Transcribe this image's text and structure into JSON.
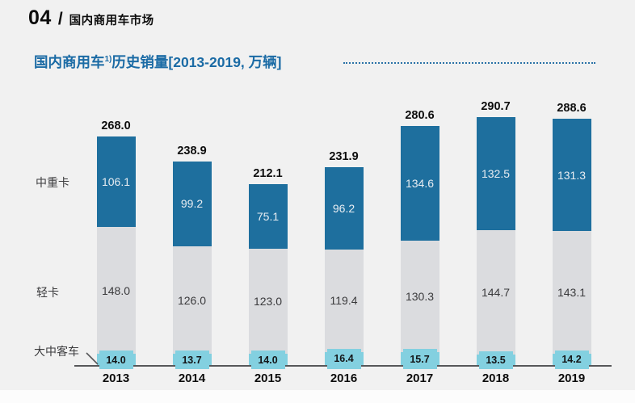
{
  "header": {
    "number": "04",
    "separator": "/",
    "title": "国内商用车市场"
  },
  "chart_title": {
    "prefix": "国内商用车",
    "superscript": "1)",
    "suffix": "历史销量[2013-2019, 万辆]"
  },
  "side_labels": {
    "heavy": "中重卡",
    "light": "轻卡",
    "bus": "大中客车"
  },
  "colors": {
    "heavy_truck_bar": "#1E6F9E",
    "light_truck_bar": "#DBDCDF",
    "bus_bar": "#83D0E0",
    "title_blue": "#1B6BA5",
    "axis": "#57585A",
    "background": "#F1F1F1"
  },
  "chart_data": {
    "type": "bar",
    "stacked": true,
    "title": "国内商用车1)历史销量[2013-2019, 万辆]",
    "unit": "万辆",
    "categories": [
      "2013",
      "2014",
      "2015",
      "2016",
      "2017",
      "2018",
      "2019"
    ],
    "series": [
      {
        "name": "中重卡",
        "values": [
          106.1,
          99.2,
          75.1,
          96.2,
          134.6,
          132.5,
          131.3
        ]
      },
      {
        "name": "轻卡",
        "values": [
          148.0,
          126.0,
          123.0,
          119.4,
          130.3,
          144.7,
          143.1
        ]
      },
      {
        "name": "大中客车",
        "values": [
          14.0,
          13.7,
          14.0,
          16.4,
          15.7,
          13.5,
          14.2
        ]
      }
    ],
    "totals": [
      268.0,
      238.9,
      212.1,
      231.9,
      280.6,
      290.7,
      288.6
    ],
    "ylim": [
      0,
      300
    ],
    "grid": false,
    "legend_position": "left-side-labels",
    "value_labels": "inside-segments-and-totals-on-top"
  }
}
